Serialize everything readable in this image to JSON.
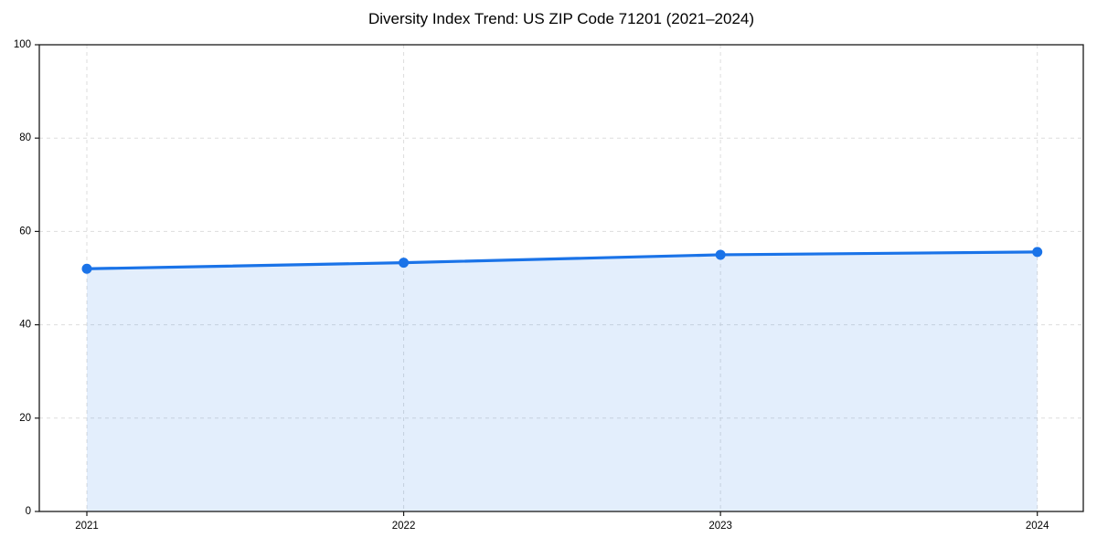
{
  "figure": {
    "background_color": "#ffffff"
  },
  "chart_data": {
    "type": "area",
    "title": "Diversity Index Trend: US ZIP Code 71201 (2021–2024)",
    "categories": [
      "2021",
      "2022",
      "2023",
      "2024"
    ],
    "series": [
      {
        "name": "Diversity Index",
        "values": [
          52.0,
          53.3,
          55.0,
          55.6
        ]
      }
    ],
    "xlabel": "",
    "ylabel": "",
    "ylim": [
      0,
      100
    ],
    "yticks": [
      0,
      20,
      40,
      60,
      80,
      100
    ],
    "grid": true,
    "grid_style": "dashed",
    "legend": false,
    "marker": "circle",
    "colors": {
      "line": "#1a73e8",
      "marker": "#1a73e8",
      "fill": "rgba(26,115,232,0.12)",
      "grid": "#dddddd",
      "axis": "#1a1a1a",
      "tick_label": "#000000",
      "title": "#000000"
    }
  }
}
